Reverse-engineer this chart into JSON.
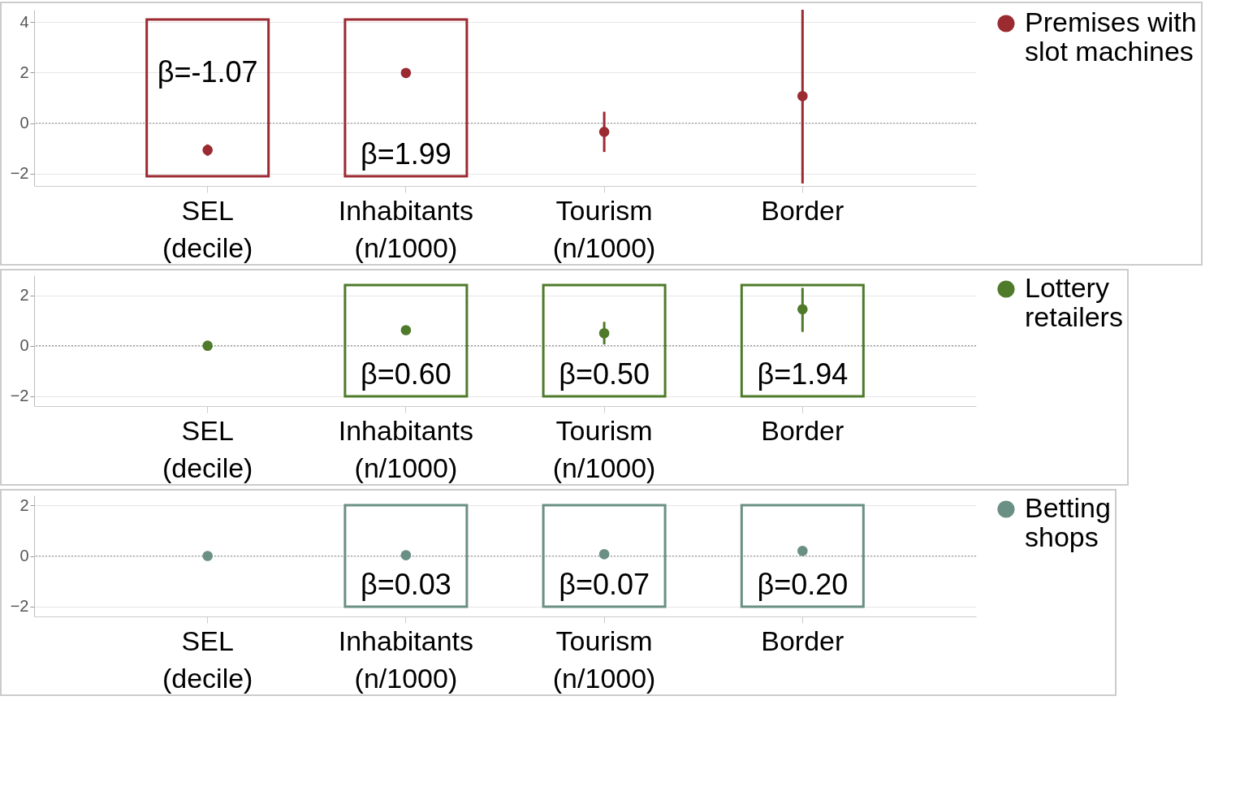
{
  "chart_data": [
    {
      "type": "scatter",
      "categories": [
        "SEL (decile)",
        "Inhabitants (n/1000)",
        "Tourism (n/1000)",
        "Border"
      ],
      "series": [
        {
          "name": "Premises with slot machines",
          "color": "#9b2a31",
          "values": [
            -1.07,
            1.99,
            -0.35,
            1.07
          ],
          "errors": [
            [
              -1.3,
              -0.85
            ],
            null,
            [
              -1.15,
              0.45
            ],
            [
              -2.4,
              4.5
            ]
          ]
        }
      ],
      "ylim": [
        -2.5,
        4.5
      ],
      "yticks": [
        -2,
        0,
        2,
        4
      ],
      "grid": "y",
      "legend": "right",
      "marker": "circle",
      "ref_lines": [
        {
          "axis": "y",
          "value": 0,
          "line_style": "dotted"
        }
      ],
      "annotations": [
        {
          "text": "β=-1.07",
          "x": "SEL (decile)",
          "y": -1.07
        },
        {
          "text": "β=1.99",
          "x": "Inhabitants (n/1000)",
          "y": 1.99
        }
      ]
    },
    {
      "type": "scatter",
      "categories": [
        "SEL (decile)",
        "Inhabitants (n/1000)",
        "Tourism (n/1000)",
        "Border"
      ],
      "series": [
        {
          "name": "Lottery retailers",
          "color": "#4e7a2a",
          "values": [
            0,
            0.62,
            0.5,
            1.45
          ],
          "errors": [
            null,
            null,
            [
              0.05,
              0.95
            ],
            [
              0.55,
              2.3
            ]
          ]
        }
      ],
      "ylim": [
        -2.4,
        2.8
      ],
      "yticks": [
        -2,
        0,
        2
      ],
      "grid": "y",
      "legend": "right",
      "marker": "circle",
      "ref_lines": [
        {
          "axis": "y",
          "value": 0,
          "line_style": "dotted"
        }
      ],
      "annotations": [
        {
          "text": "β=0.60",
          "x": "Inhabitants (n/1000)",
          "y": 0.62
        },
        {
          "text": "β=0.50",
          "x": "Tourism (n/1000)",
          "y": 0.5
        },
        {
          "text": "β=1.94",
          "x": "Border",
          "y": 1.45
        }
      ]
    },
    {
      "type": "scatter",
      "categories": [
        "SEL (decile)",
        "Inhabitants (n/1000)",
        "Tourism (n/1000)",
        "Border"
      ],
      "series": [
        {
          "name": "Betting shops",
          "color": "#6a8f84",
          "values": [
            0,
            0.03,
            0.07,
            0.2
          ]
        }
      ],
      "ylim": [
        -2.4,
        2.4
      ],
      "yticks": [
        -2,
        0,
        2
      ],
      "grid": "y",
      "legend": "right",
      "marker": "circle",
      "ref_lines": [
        {
          "axis": "y",
          "value": 0,
          "line_style": "dotted"
        }
      ],
      "annotations": [
        {
          "text": "β=0.03",
          "x": "Inhabitants (n/1000)",
          "y": 0.03
        },
        {
          "text": "β=0.07",
          "x": "Tourism (n/1000)",
          "y": 0.07
        },
        {
          "text": "β=0.20",
          "x": "Border",
          "y": 0.2
        }
      ]
    }
  ]
}
